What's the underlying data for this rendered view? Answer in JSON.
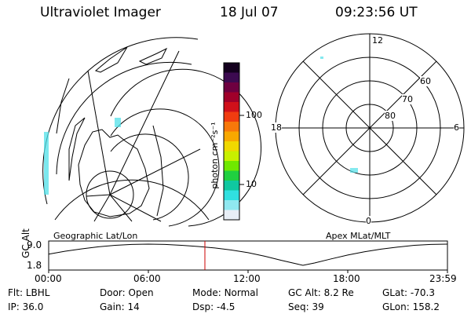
{
  "header": {
    "title": "Ultraviolet Imager",
    "date": "18 Jul 07",
    "time": "09:23:56 UT"
  },
  "left_panel": {
    "label": "Geographic Lat/Lon"
  },
  "right_panel": {
    "label": "Apex MLat/MLT",
    "mlt_labels": {
      "top": "12",
      "bottom": "0",
      "left": "18",
      "right": "6"
    },
    "lat_labels": [
      "60",
      "70",
      "80"
    ]
  },
  "colorbar": {
    "unit_label": "photon cm⁻²s⁻¹",
    "ticks": [
      "100",
      "10"
    ],
    "colors": [
      "#14001e",
      "#3c0a50",
      "#6e0040",
      "#a0002a",
      "#d0101a",
      "#f03c10",
      "#f8780a",
      "#f8a800",
      "#f0d800",
      "#c8f000",
      "#70e800",
      "#20d040",
      "#10c8a0",
      "#30e0e0",
      "#90e8f0",
      "#e8eef6"
    ]
  },
  "chart_data": {
    "type": "line",
    "title": "",
    "ylabel": "GC Alt",
    "yticks": [
      "9.0",
      "1.8"
    ],
    "xticks": [
      "00:00",
      "06:00",
      "12:00",
      "18:00",
      "23:59"
    ],
    "x_hours": [
      0,
      1,
      2,
      3,
      4,
      5,
      6,
      7,
      8,
      9,
      10,
      11,
      12,
      13,
      14,
      15,
      15.3,
      16,
      17,
      18,
      19,
      20,
      21,
      22,
      23,
      24
    ],
    "y_re": [
      5.6,
      6.6,
      7.4,
      8.1,
      8.6,
      8.9,
      9.0,
      8.9,
      8.6,
      8.2,
      7.7,
      7.0,
      6.1,
      4.9,
      3.5,
      2.2,
      1.8,
      2.6,
      4.0,
      5.3,
      6.4,
      7.3,
      8.0,
      8.6,
      8.9,
      9.0
    ],
    "current_time_hours": 9.4
  },
  "info": [
    {
      "label": "Flt:",
      "value": "LBHL"
    },
    {
      "label": "Door:",
      "value": "Open"
    },
    {
      "label": "Mode:",
      "value": "Normal"
    },
    {
      "label": "GC Alt:",
      "value": "8.2 Re"
    },
    {
      "label": "GLat:",
      "value": "-70.3"
    },
    {
      "label": "IP:",
      "value": "36.0"
    },
    {
      "label": "Gain:",
      "value": "14"
    },
    {
      "label": "Dsp:",
      "value": "-4.5"
    },
    {
      "label": "Seq:",
      "value": "39"
    },
    {
      "label": "GLon:",
      "value": "158.2"
    }
  ]
}
